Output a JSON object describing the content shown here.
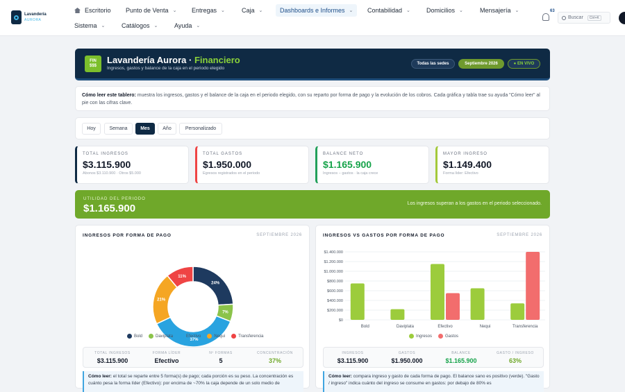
{
  "app": {
    "logo_line1": "Lavandería",
    "logo_line2": "AURORA"
  },
  "nav": {
    "row1": [
      "Escritorio",
      "Punto de Venta",
      "Entregas",
      "Caja",
      "Dashboards e Informes",
      "Contabilidad",
      "Domicilios",
      "Mensajería"
    ],
    "row2": [
      "Sistema",
      "Catálogos",
      "Ayuda"
    ],
    "notifications": "63",
    "search_label": "Buscar",
    "search_shortcut": "Ctrl+K"
  },
  "hero": {
    "icon_line1": "FIN",
    "icon_line2": "$$$",
    "title": "Lavandería Aurora · ",
    "title_accent": "Financiero",
    "subtitle": "Ingresos, gastos y balance de la caja en el periodo elegido",
    "pill_sedes": "Todas las sedes",
    "pill_period": "Septiembre 2026",
    "pill_live": "● EN VIVO"
  },
  "info": {
    "lead": "Cómo leer este tablero:",
    "text": " muestra los ingresos, gastos y el balance de la caja en el periodo elegido, con su reparto por forma de pago y la evolución de los cobros. Cada gráfica y tabla trae su ayuda \"Cómo leer\" al pie con las cifras clave."
  },
  "periods": [
    "Hoy",
    "Semana",
    "Mes",
    "Año",
    "Personalizado"
  ],
  "active_period": "Mes",
  "kpis": [
    {
      "label": "TOTAL INGRESOS",
      "value": "$3.115.900",
      "sub": "Abonos $3.110.900 · Otros $5.000",
      "color": "#0f2a44",
      "value_color": "#111827"
    },
    {
      "label": "TOTAL GASTOS",
      "value": "$1.950.000",
      "sub": "Egresos registrados en el periodo",
      "color": "#ef4444",
      "value_color": "#111827"
    },
    {
      "label": "BALANCE NETO",
      "value": "$1.165.900",
      "sub": "Ingresos − gastos · la caja crece",
      "color": "#22a05a",
      "value_color": "#16a34a"
    },
    {
      "label": "MAYOR INGRESO",
      "value": "$1.149.400",
      "sub": "Forma líder: Efectivo",
      "color": "#a3c93a",
      "value_color": "#111827"
    }
  ],
  "utilidad": {
    "label": "UTILIDAD DEL PERIODO",
    "value": "$1.165.900",
    "message": "Los ingresos superan a los gastos en el periodo seleccionado."
  },
  "pie_panel": {
    "title": "INGRESOS POR FORMA DE PAGO",
    "date": "SEPTIEMBRE 2026",
    "stats": [
      {
        "label": "TOTAL INGRESOS",
        "value": "$3.115.900"
      },
      {
        "label": "FORMA LÍDER",
        "value": "Efectivo"
      },
      {
        "label": "Nº FORMAS",
        "value": "5"
      },
      {
        "label": "CONCENTRACIÓN",
        "value": "37%"
      }
    ],
    "read_lead": "Cómo leer:",
    "read_text": " el total se reparte entre 5 forma(s) de pago; cada porción es su peso. La concentración es cuánto pesa la forma líder (Efectivo): por encima de ~70% la caja depende de un solo medio de"
  },
  "bar_panel": {
    "title": "INGRESOS VS GASTOS POR FORMA DE PAGO",
    "date": "SEPTIEMBRE 2026",
    "stats": [
      {
        "label": "INGRESOS",
        "value": "$3.115.900"
      },
      {
        "label": "GASTOS",
        "value": "$1.950.000"
      },
      {
        "label": "BALANCE",
        "value": "$1.165.900"
      },
      {
        "label": "GASTO / INGRESO",
        "value": "63%"
      }
    ],
    "read_lead": "Cómo leer:",
    "read_text": " compara ingreso y gasto de cada forma de pago. El balance sano es positivo (verde). \"Gasto / ingreso\" indica cuánto del ingreso se consume en gastos: por debajo de 80% es"
  },
  "chart_data": [
    {
      "type": "pie",
      "categories": [
        "Bold",
        "Daviplata",
        "Efectivo",
        "Nequi",
        "Transferencia"
      ],
      "values": [
        24,
        7,
        37,
        21,
        11
      ],
      "colors": [
        "#1e3a5f",
        "#8bc34a",
        "#29a3e0",
        "#f5a623",
        "#ef4444"
      ]
    },
    {
      "type": "bar",
      "categories": [
        "Bold",
        "Daviplata",
        "Efectivo",
        "Nequi",
        "Transferencia"
      ],
      "series": [
        {
          "name": "Ingresos",
          "values": [
            750000,
            220000,
            1149400,
            650000,
            340000
          ],
          "color": "#9ccc3c"
        },
        {
          "name": "Gastos",
          "values": [
            0,
            0,
            550000,
            0,
            1400000
          ],
          "color": "#f26d6d"
        }
      ],
      "yticks": [
        "$0",
        "$200.000",
        "$400.000",
        "$600.000",
        "$800.000",
        "$1.000.000",
        "$1.200.000",
        "$1.400.000"
      ],
      "ylim": [
        0,
        1400000
      ]
    }
  ]
}
